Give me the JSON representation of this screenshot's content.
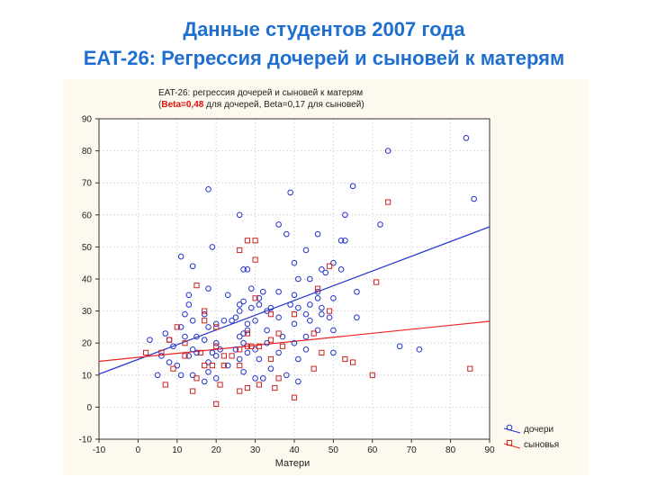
{
  "slide": {
    "title_line1": "Данные студентов 2007 года",
    "title_line2": "EAT-26: Регрессия дочерей и сыновей к матерям"
  },
  "chart_data": {
    "type": "scatter",
    "title": "EAT-26: регрессия дочерей и сыновей к матерям",
    "subtitle_open": "(",
    "subtitle_highlight": "Beta=0,48",
    "subtitle_rest": " для дочерей, Beta=0,17 для сыновей)",
    "xlabel": "Матери",
    "ylabel": "",
    "xlim": [
      -10,
      90
    ],
    "ylim": [
      -10,
      90
    ],
    "x_ticks": [
      -10,
      0,
      10,
      20,
      30,
      40,
      50,
      60,
      70,
      80,
      90
    ],
    "y_ticks": [
      -10,
      0,
      10,
      20,
      30,
      40,
      50,
      60,
      70,
      80,
      90
    ],
    "grid": true,
    "legend_position": "bottom-right",
    "series": [
      {
        "name": "дочери",
        "marker": "circle",
        "color": "#2233cc",
        "points": [
          [
            84,
            84
          ],
          [
            64,
            80
          ],
          [
            18,
            68
          ],
          [
            39,
            67
          ],
          [
            55,
            69
          ],
          [
            86,
            65
          ],
          [
            26,
            60
          ],
          [
            53,
            60
          ],
          [
            62,
            57
          ],
          [
            36,
            57
          ],
          [
            38,
            54
          ],
          [
            46,
            54
          ],
          [
            52,
            52
          ],
          [
            53,
            52
          ],
          [
            19,
            50
          ],
          [
            43,
            49
          ],
          [
            40,
            45
          ],
          [
            14,
            44
          ],
          [
            27,
            43
          ],
          [
            28,
            43
          ],
          [
            50,
            45
          ],
          [
            47,
            43
          ],
          [
            52,
            43
          ],
          [
            11,
            47
          ],
          [
            41,
            40
          ],
          [
            44,
            40
          ],
          [
            48,
            42
          ],
          [
            29,
            37
          ],
          [
            18,
            37
          ],
          [
            32,
            36
          ],
          [
            36,
            36
          ],
          [
            46,
            36
          ],
          [
            56,
            36
          ],
          [
            13,
            35
          ],
          [
            23,
            35
          ],
          [
            31,
            34
          ],
          [
            40,
            35
          ],
          [
            46,
            34
          ],
          [
            50,
            34
          ],
          [
            13,
            32
          ],
          [
            27,
            33
          ],
          [
            26,
            32
          ],
          [
            31,
            32
          ],
          [
            39,
            32
          ],
          [
            44,
            32
          ],
          [
            29,
            31
          ],
          [
            34,
            31
          ],
          [
            41,
            31
          ],
          [
            47,
            31
          ],
          [
            12,
            29
          ],
          [
            26,
            30
          ],
          [
            33,
            30
          ],
          [
            43,
            29
          ],
          [
            47,
            29
          ],
          [
            17,
            29
          ],
          [
            25,
            28
          ],
          [
            36,
            28
          ],
          [
            49,
            28
          ],
          [
            56,
            28
          ],
          [
            14,
            27
          ],
          [
            22,
            27
          ],
          [
            24,
            27
          ],
          [
            30,
            27
          ],
          [
            44,
            27
          ],
          [
            20,
            26
          ],
          [
            28,
            26
          ],
          [
            40,
            26
          ],
          [
            11,
            25
          ],
          [
            18,
            25
          ],
          [
            28,
            24
          ],
          [
            33,
            24
          ],
          [
            46,
            24
          ],
          [
            50,
            24
          ],
          [
            7,
            23
          ],
          [
            27,
            23
          ],
          [
            12,
            22
          ],
          [
            15,
            22
          ],
          [
            26,
            22
          ],
          [
            37,
            22
          ],
          [
            43,
            22
          ],
          [
            8,
            21
          ],
          [
            17,
            21
          ],
          [
            20,
            20
          ],
          [
            27,
            20
          ],
          [
            33,
            20
          ],
          [
            40,
            20
          ],
          [
            3,
            21
          ],
          [
            9,
            19
          ],
          [
            14,
            18
          ],
          [
            21,
            18
          ],
          [
            25,
            18
          ],
          [
            30,
            18
          ],
          [
            43,
            18
          ],
          [
            15,
            17
          ],
          [
            19,
            17
          ],
          [
            28,
            17
          ],
          [
            36,
            17
          ],
          [
            50,
            17
          ],
          [
            6,
            16
          ],
          [
            13,
            16
          ],
          [
            20,
            16
          ],
          [
            26,
            15
          ],
          [
            31,
            15
          ],
          [
            41,
            15
          ],
          [
            8,
            14
          ],
          [
            18,
            14
          ],
          [
            10,
            13
          ],
          [
            23,
            13
          ],
          [
            34,
            12
          ],
          [
            18,
            11
          ],
          [
            27,
            11
          ],
          [
            11,
            10
          ],
          [
            14,
            10
          ],
          [
            38,
            10
          ],
          [
            5,
            10
          ],
          [
            20,
            9
          ],
          [
            30,
            9
          ],
          [
            32,
            9
          ],
          [
            17,
            8
          ],
          [
            41,
            8
          ],
          [
            67,
            19
          ],
          [
            72,
            18
          ]
        ]
      },
      {
        "name": "сыновья",
        "marker": "square",
        "color": "#cc2222",
        "points": [
          [
            64,
            64
          ],
          [
            28,
            52
          ],
          [
            30,
            52
          ],
          [
            26,
            49
          ],
          [
            30,
            46
          ],
          [
            49,
            44
          ],
          [
            15,
            38
          ],
          [
            61,
            39
          ],
          [
            46,
            37
          ],
          [
            17,
            30
          ],
          [
            30,
            34
          ],
          [
            49,
            30
          ],
          [
            40,
            29
          ],
          [
            34,
            29
          ],
          [
            10,
            25
          ],
          [
            17,
            27
          ],
          [
            20,
            25
          ],
          [
            28,
            23
          ],
          [
            45,
            23
          ],
          [
            36,
            23
          ],
          [
            34,
            21
          ],
          [
            8,
            21
          ],
          [
            12,
            20
          ],
          [
            20,
            19
          ],
          [
            28,
            19
          ],
          [
            29,
            19
          ],
          [
            31,
            19
          ],
          [
            37,
            19
          ],
          [
            26,
            18
          ],
          [
            16,
            17
          ],
          [
            12,
            16
          ],
          [
            22,
            16
          ],
          [
            47,
            17
          ],
          [
            2,
            17
          ],
          [
            6,
            17
          ],
          [
            24,
            16
          ],
          [
            17,
            13
          ],
          [
            34,
            15
          ],
          [
            53,
            15
          ],
          [
            55,
            14
          ],
          [
            19,
            13
          ],
          [
            22,
            13
          ],
          [
            26,
            13
          ],
          [
            9,
            12
          ],
          [
            45,
            12
          ],
          [
            85,
            12
          ],
          [
            60,
            10
          ],
          [
            15,
            9
          ],
          [
            36,
            9
          ],
          [
            31,
            7
          ],
          [
            35,
            6
          ],
          [
            7,
            7
          ],
          [
            21,
            7
          ],
          [
            26,
            5
          ],
          [
            28,
            6
          ],
          [
            14,
            5
          ],
          [
            20,
            1
          ],
          [
            40,
            3
          ]
        ]
      }
    ],
    "regression_lines": [
      {
        "name": "дочери",
        "color": "#2233cc",
        "x": [
          -10,
          90
        ],
        "y": [
          10.3,
          56.3
        ]
      },
      {
        "name": "сыновья",
        "color": "#ee2222",
        "x": [
          -10,
          90
        ],
        "y": [
          14.3,
          26.8
        ]
      }
    ]
  }
}
